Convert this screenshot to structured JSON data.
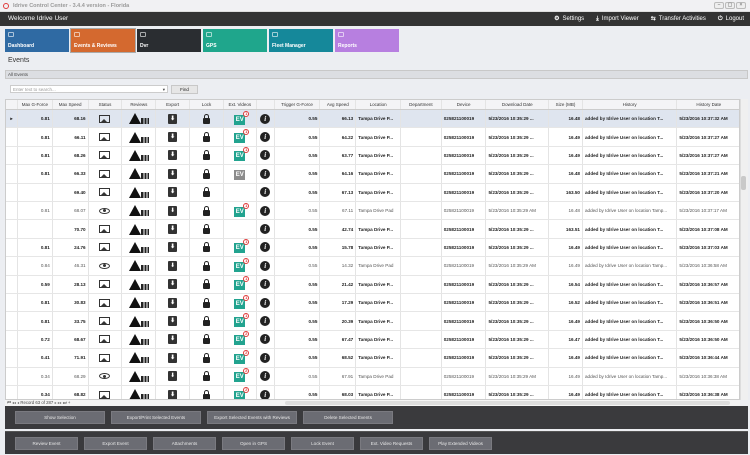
{
  "window": {
    "title": "Idrive Control Center - 3.4.4 version - Florida",
    "controls": [
      "–",
      "▢",
      "×"
    ]
  },
  "header": {
    "welcome": "Welcome Idrive User",
    "nav": [
      {
        "label": "Settings",
        "icon": "gears-icon",
        "glyph": "⚙"
      },
      {
        "label": "Import Viewer",
        "icon": "download-icon",
        "glyph": "⤓"
      },
      {
        "label": "Transfer Activities",
        "icon": "transfer-icon",
        "glyph": "⇆"
      },
      {
        "label": "Logout",
        "icon": "power-icon",
        "glyph": "⏻"
      }
    ]
  },
  "tiles": [
    {
      "label": "Dashboard",
      "color": "#2f6aa3"
    },
    {
      "label": "Events & Reviews",
      "color": "#d4692f"
    },
    {
      "label": "Dvr",
      "color": "#2a2d31"
    },
    {
      "label": "GPS",
      "color": "#1fa68c"
    },
    {
      "label": "Fleet Manager",
      "color": "#15889a"
    },
    {
      "label": "Reports",
      "color": "#b77fe0"
    }
  ],
  "page": {
    "title": "Events",
    "panel": "All Events",
    "search_placeholder": "Enter text to search...",
    "find": "Find"
  },
  "columns": [
    "Max G-Force",
    "Max Speed",
    "Status",
    "Reviews",
    "Export",
    "Lock",
    "Ext. Videos",
    "",
    "Trigger G-Force",
    "Avg Speed",
    "Location",
    "Department",
    "Device",
    "Download Date",
    "Size (MB)",
    "History",
    "History Date"
  ],
  "rows": [
    {
      "g": "0.81",
      "s": "68.16",
      "st": "image",
      "ev": "1",
      "tg": "0.55",
      "avg": "66.13",
      "loc": "Tampa Drive P...",
      "dev": "025821100019",
      "dl": "5/23/2016 10:35:29 ...",
      "size": "16.48",
      "hist": "added by Idrive User on location T...",
      "hd": "5/23/2016 10:37:32 AM",
      "bold": true,
      "selected": true
    },
    {
      "g": "0.81",
      "s": "66.11",
      "st": "image",
      "ev": "1",
      "tg": "0.55",
      "avg": "64.22",
      "loc": "Tampa Drive P...",
      "dev": "025821100019",
      "dl": "5/23/2016 10:35:29 ...",
      "size": "16.49",
      "hist": "added by Idrive User on location T...",
      "hd": "5/23/2016 10:37:27 AM",
      "bold": true
    },
    {
      "g": "0.81",
      "s": "68.26",
      "st": "image",
      "ev": "1",
      "tg": "0.55",
      "avg": "63.77",
      "loc": "Tampa Drive P...",
      "dev": "025821100019",
      "dl": "5/23/2016 10:35:29 ...",
      "size": "16.49",
      "hist": "added by Idrive User on location T...",
      "hd": "5/23/2016 10:37:27 AM",
      "bold": true
    },
    {
      "g": "0.81",
      "s": "66.33",
      "st": "image",
      "ev": "gray",
      "tg": "0.55",
      "avg": "64.16",
      "loc": "Tampa Drive P...",
      "dev": "025821100019",
      "dl": "5/23/2016 10:35:29 ...",
      "size": "16.48",
      "hist": "added by Idrive User on location T...",
      "hd": "5/23/2016 10:37:21 AM",
      "bold": true
    },
    {
      "g": "",
      "s": "69.40",
      "st": "image",
      "ev": "",
      "tg": "0.55",
      "avg": "67.13",
      "loc": "Tampa Drive P...",
      "dev": "025821100019",
      "dl": "5/23/2016 10:35:29 ...",
      "size": "163.50",
      "hist": "added by Idrive User on location T...",
      "hd": "5/23/2016 10:37:20 AM",
      "bold": true
    },
    {
      "g": "0.81",
      "s": "68.07",
      "st": "eye",
      "ev": "1",
      "tg": "0.55",
      "avg": "67.11",
      "loc": "Tampa Drive Pad",
      "dev": "025821100019",
      "dl": "5/23/2016 10:35:29 AM",
      "size": "16.48",
      "hist": "added by Idrive User on location Tamp...",
      "hd": "5/23/2016 10:37:17 AM",
      "bold": false
    },
    {
      "g": "",
      "s": "70.70",
      "st": "image",
      "ev": "",
      "tg": "0.55",
      "avg": "42.74",
      "loc": "Tampa Drive P...",
      "dev": "025821100019",
      "dl": "5/23/2016 10:35:29 ...",
      "size": "163.51",
      "hist": "added by Idrive User on location T...",
      "hd": "5/23/2016 10:37:08 AM",
      "bold": true
    },
    {
      "g": "0.81",
      "s": "24.76",
      "st": "image",
      "ev": "1",
      "tg": "0.55",
      "avg": "15.78",
      "loc": "Tampa Drive P...",
      "dev": "025821100019",
      "dl": "5/23/2016 10:35:29 ...",
      "size": "16.49",
      "hist": "added by Idrive User on location T...",
      "hd": "5/23/2016 10:37:03 AM",
      "bold": true
    },
    {
      "g": "0.84",
      "s": "46.31",
      "st": "eye",
      "ev": "1",
      "tg": "0.55",
      "avg": "14.32",
      "loc": "Tampa Drive Pad",
      "dev": "025821100019",
      "dl": "5/23/2016 10:35:29 AM",
      "size": "16.49",
      "hist": "added by Idrive User on location Tamp...",
      "hd": "5/23/2016 10:36:58 AM",
      "bold": false
    },
    {
      "g": "0.59",
      "s": "28.13",
      "st": "image",
      "ev": "1",
      "tg": "0.55",
      "avg": "21.42",
      "loc": "Tampa Drive P...",
      "dev": "025821100019",
      "dl": "5/23/2016 10:35:29 ...",
      "size": "16.54",
      "hist": "added by Idrive User on location T...",
      "hd": "5/23/2016 10:36:57 AM",
      "bold": true
    },
    {
      "g": "0.81",
      "s": "30.83",
      "st": "image",
      "ev": "1",
      "tg": "0.55",
      "avg": "17.29",
      "loc": "Tampa Drive P...",
      "dev": "025821100019",
      "dl": "5/23/2016 10:35:29 ...",
      "size": "16.52",
      "hist": "added by Idrive User on location T...",
      "hd": "5/23/2016 10:36:51 AM",
      "bold": true
    },
    {
      "g": "0.81",
      "s": "33.75",
      "st": "image",
      "ev": "1",
      "tg": "0.55",
      "avg": "20.39",
      "loc": "Tampa Drive P...",
      "dev": "025821100019",
      "dl": "5/23/2016 10:35:29 ...",
      "size": "16.49",
      "hist": "added by Idrive User on location T...",
      "hd": "5/23/2016 10:36:50 AM",
      "bold": true
    },
    {
      "g": "0.72",
      "s": "68.67",
      "st": "image",
      "ev": "2",
      "tg": "0.55",
      "avg": "67.47",
      "loc": "Tampa Drive P...",
      "dev": "025821100019",
      "dl": "5/23/2016 10:35:29 ...",
      "size": "16.47",
      "hist": "added by Idrive User on location T...",
      "hd": "5/23/2016 10:36:50 AM",
      "bold": true
    },
    {
      "g": "0.41",
      "s": "71.91",
      "st": "image",
      "ev": "2",
      "tg": "0.55",
      "avg": "68.52",
      "loc": "Tampa Drive P...",
      "dev": "025821100019",
      "dl": "5/23/2016 10:35:29 ...",
      "size": "16.49",
      "hist": "added by Idrive User on location T...",
      "hd": "5/23/2016 10:36:44 AM",
      "bold": true
    },
    {
      "g": "0.34",
      "s": "68.29",
      "st": "eye",
      "ev": "2",
      "tg": "0.55",
      "avg": "67.91",
      "loc": "Tampa Drive Pad",
      "dev": "025821100019",
      "dl": "5/23/2016 10:35:29 AM",
      "size": "16.49",
      "hist": "added by Idrive User on location Tamp...",
      "hd": "5/23/2016 10:36:38 AM",
      "bold": false
    },
    {
      "g": "0.34",
      "s": "68.82",
      "st": "image",
      "ev": "2",
      "tg": "0.55",
      "avg": "68.03",
      "loc": "Tampa Drive P...",
      "dev": "025821100019",
      "dl": "5/23/2016 10:35:29 ...",
      "size": "16.49",
      "hist": "added by Idrive User on location T...",
      "hd": "5/23/2016 10:36:38 AM",
      "bold": true
    }
  ],
  "pager": {
    "text": "Record 63 of 287",
    "first": "⏮",
    "prev_page": "◂◂",
    "prev": "◂",
    "next": "▸",
    "next_page": "▸▸",
    "last": "⏭",
    "add": "+"
  },
  "actions_top": [
    "Show Selection",
    "Export/Print Selected Events",
    "Export Selected Events with Reviews",
    "Delete Selected  Events"
  ],
  "actions_bottom": [
    "Review Event",
    "Export Event",
    "Attachments",
    "Open in GPS",
    "Lock Event",
    "Ext. Video Requests",
    "Play Extended Videos"
  ]
}
